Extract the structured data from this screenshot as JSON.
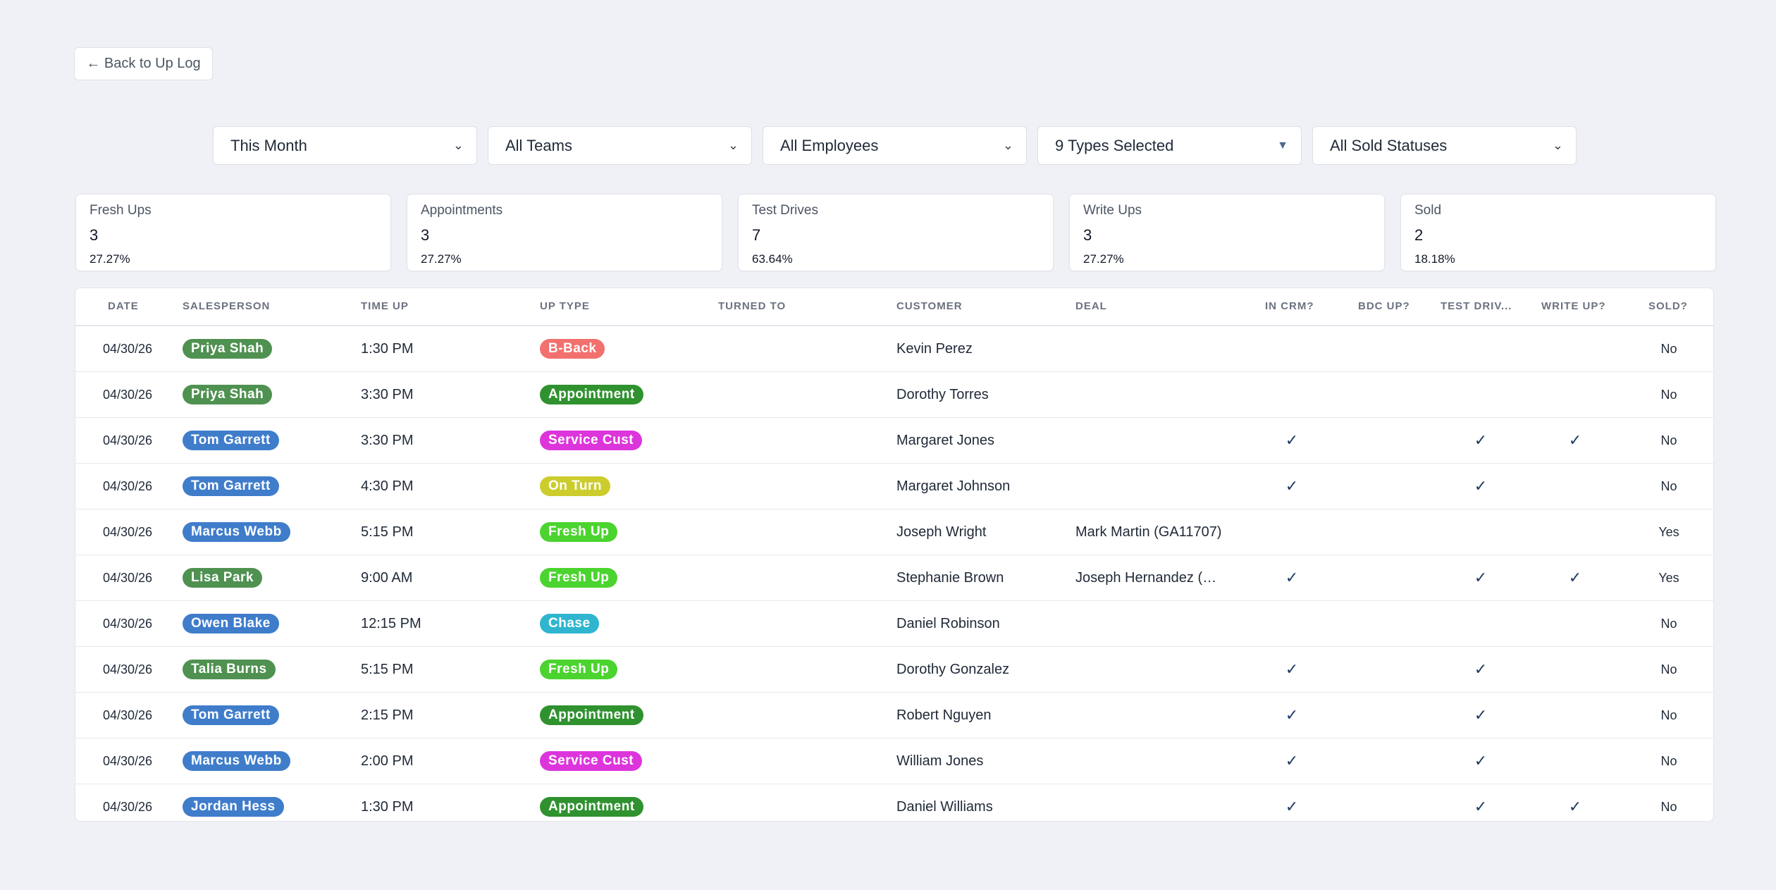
{
  "back_label": "← Back to Up Log",
  "filters": {
    "period": "This Month",
    "teams": "All Teams",
    "employees": "All Employees",
    "types": "9 Types Selected",
    "sold_status": "All Sold Statuses"
  },
  "stats": [
    {
      "label": "Fresh Ups",
      "value": "3",
      "pct": "27.27%"
    },
    {
      "label": "Appointments",
      "value": "3",
      "pct": "27.27%"
    },
    {
      "label": "Test Drives",
      "value": "7",
      "pct": "63.64%"
    },
    {
      "label": "Write Ups",
      "value": "3",
      "pct": "27.27%"
    },
    {
      "label": "Sold",
      "value": "2",
      "pct": "18.18%"
    }
  ],
  "columns": {
    "date": "DATE",
    "salesperson": "SALESPERSON",
    "time_up": "TIME UP",
    "up_type": "UP TYPE",
    "turned_to": "TURNED TO",
    "customer": "CUSTOMER",
    "deal": "DEAL",
    "in_crm": "IN CRM?",
    "bdc_up": "BDC UP?",
    "test_drive": "TEST DRIV...",
    "write_up": "WRITE UP?",
    "sold": "SOLD?"
  },
  "colors": {
    "salesperson_green": "#4f9150",
    "salesperson_blue": "#3f7dcb",
    "b_back": "#f2706e",
    "appointment": "#2f922f",
    "service_cust": "#dc35dc",
    "on_turn": "#cccd2d",
    "fresh_up": "#4bd42f",
    "chase": "#2fb5cf"
  },
  "check_icon": "✓",
  "rows": [
    {
      "date": "04/30/26",
      "salesperson": "Priya Shah",
      "sp_color": "#4f9150",
      "time": "1:30 PM",
      "up_type": "B-Back",
      "ut_color": "#f2706e",
      "turned_to": "",
      "customer": "Kevin Perez",
      "deal": "",
      "in_crm": false,
      "bdc_up": false,
      "test_drive": false,
      "write_up": false,
      "sold": "No"
    },
    {
      "date": "04/30/26",
      "salesperson": "Priya Shah",
      "sp_color": "#4f9150",
      "time": "3:30 PM",
      "up_type": "Appointment",
      "ut_color": "#2f922f",
      "turned_to": "",
      "customer": "Dorothy Torres",
      "deal": "",
      "in_crm": false,
      "bdc_up": false,
      "test_drive": false,
      "write_up": false,
      "sold": "No"
    },
    {
      "date": "04/30/26",
      "salesperson": "Tom Garrett",
      "sp_color": "#3f7dcb",
      "time": "3:30 PM",
      "up_type": "Service Cust",
      "ut_color": "#dc35dc",
      "turned_to": "",
      "customer": "Margaret Jones",
      "deal": "",
      "in_crm": true,
      "bdc_up": false,
      "test_drive": true,
      "write_up": true,
      "sold": "No"
    },
    {
      "date": "04/30/26",
      "salesperson": "Tom Garrett",
      "sp_color": "#3f7dcb",
      "time": "4:30 PM",
      "up_type": "On Turn",
      "ut_color": "#cccd2d",
      "turned_to": "",
      "customer": "Margaret Johnson",
      "deal": "",
      "in_crm": true,
      "bdc_up": false,
      "test_drive": true,
      "write_up": false,
      "sold": "No"
    },
    {
      "date": "04/30/26",
      "salesperson": "Marcus Webb",
      "sp_color": "#3f7dcb",
      "time": "5:15 PM",
      "up_type": "Fresh Up",
      "ut_color": "#4bd42f",
      "turned_to": "",
      "customer": "Joseph Wright",
      "deal": "Mark Martin (GA11707)",
      "in_crm": false,
      "bdc_up": false,
      "test_drive": false,
      "write_up": false,
      "sold": "Yes"
    },
    {
      "date": "04/30/26",
      "salesperson": "Lisa Park",
      "sp_color": "#4f9150",
      "time": "9:00 AM",
      "up_type": "Fresh Up",
      "ut_color": "#4bd42f",
      "turned_to": "",
      "customer": "Stephanie Brown",
      "deal": "Joseph Hernandez (…",
      "in_crm": true,
      "bdc_up": false,
      "test_drive": true,
      "write_up": true,
      "sold": "Yes"
    },
    {
      "date": "04/30/26",
      "salesperson": "Owen Blake",
      "sp_color": "#3f7dcb",
      "time": "12:15 PM",
      "up_type": "Chase",
      "ut_color": "#2fb5cf",
      "turned_to": "",
      "customer": "Daniel Robinson",
      "deal": "",
      "in_crm": false,
      "bdc_up": false,
      "test_drive": false,
      "write_up": false,
      "sold": "No"
    },
    {
      "date": "04/30/26",
      "salesperson": "Talia Burns",
      "sp_color": "#4f9150",
      "time": "5:15 PM",
      "up_type": "Fresh Up",
      "ut_color": "#4bd42f",
      "turned_to": "",
      "customer": "Dorothy Gonzalez",
      "deal": "",
      "in_crm": true,
      "bdc_up": false,
      "test_drive": true,
      "write_up": false,
      "sold": "No"
    },
    {
      "date": "04/30/26",
      "salesperson": "Tom Garrett",
      "sp_color": "#3f7dcb",
      "time": "2:15 PM",
      "up_type": "Appointment",
      "ut_color": "#2f922f",
      "turned_to": "",
      "customer": "Robert Nguyen",
      "deal": "",
      "in_crm": true,
      "bdc_up": false,
      "test_drive": true,
      "write_up": false,
      "sold": "No"
    },
    {
      "date": "04/30/26",
      "salesperson": "Marcus Webb",
      "sp_color": "#3f7dcb",
      "time": "2:00 PM",
      "up_type": "Service Cust",
      "ut_color": "#dc35dc",
      "turned_to": "",
      "customer": "William Jones",
      "deal": "",
      "in_crm": true,
      "bdc_up": false,
      "test_drive": true,
      "write_up": false,
      "sold": "No"
    },
    {
      "date": "04/30/26",
      "salesperson": "Jordan Hess",
      "sp_color": "#3f7dcb",
      "time": "1:30 PM",
      "up_type": "Appointment",
      "ut_color": "#2f922f",
      "turned_to": "",
      "customer": "Daniel Williams",
      "deal": "",
      "in_crm": true,
      "bdc_up": false,
      "test_drive": true,
      "write_up": true,
      "sold": "No"
    }
  ]
}
